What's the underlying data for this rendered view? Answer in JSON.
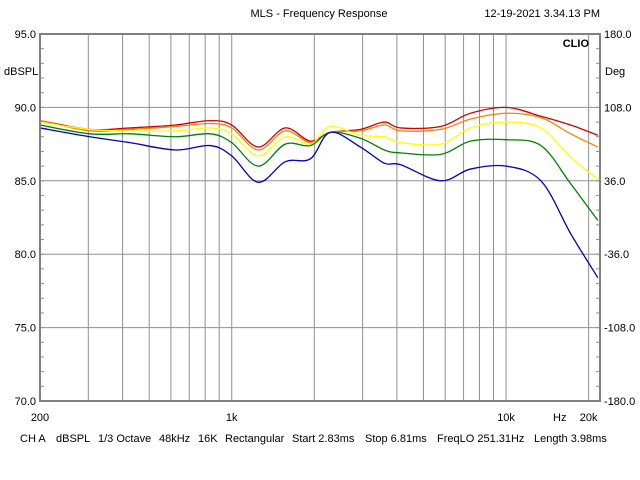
{
  "chart_data": {
    "type": "line",
    "title": "MLS - Frequency Response",
    "timestamp": "12-19-2021 3.34.13 PM",
    "brand": "CLIO",
    "ylabel": "dBSPL",
    "y2label": "Deg",
    "xunit": "Hz",
    "xscale": "log",
    "xlim": [
      200,
      22000
    ],
    "ylim": [
      70,
      95
    ],
    "y2lim": [
      -180,
      180
    ],
    "grid": true,
    "yticks": [
      {
        "value": 95,
        "label": "95.0"
      },
      {
        "value": 90,
        "label": "90.0"
      },
      {
        "value": 85,
        "label": "85.0"
      },
      {
        "value": 80,
        "label": "80.0"
      },
      {
        "value": 75,
        "label": "75.0"
      },
      {
        "value": 70,
        "label": "70.0"
      }
    ],
    "y2ticks": [
      "180.0",
      "108.0",
      "36.0",
      "-36.0",
      "-108.0",
      "-180.0"
    ],
    "xticks": [
      {
        "value": 200,
        "label": "200"
      },
      {
        "value": 1000,
        "label": "1k"
      },
      {
        "value": 10000,
        "label": "10k"
      },
      {
        "value": 20000,
        "label": "20k"
      }
    ],
    "xgrid": [
      300,
      400,
      500,
      600,
      700,
      800,
      900,
      1000,
      2000,
      3000,
      4000,
      5000,
      6000,
      7000,
      8000,
      9000,
      10000,
      20000
    ],
    "x": [
      200,
      304,
      426,
      622,
      834,
      1000,
      1249,
      1567,
      1934,
      2286,
      2944,
      3600,
      4120,
      5770,
      7413,
      10000,
      13400,
      17200,
      21600
    ],
    "series": [
      {
        "name": "red",
        "color": "#d00000",
        "values": [
          89.1,
          88.5,
          88.6,
          88.8,
          89.1,
          88.8,
          87.3,
          88.6,
          87.7,
          88.3,
          88.5,
          89.0,
          88.6,
          88.7,
          89.6,
          90.0,
          89.4,
          88.8,
          88.1
        ]
      },
      {
        "name": "orange",
        "color": "#ff8000",
        "values": [
          89.1,
          88.4,
          88.5,
          88.7,
          88.9,
          88.6,
          87.1,
          88.4,
          87.6,
          88.3,
          88.4,
          88.8,
          88.4,
          88.5,
          89.2,
          89.6,
          89.3,
          88.2,
          87.3
        ]
      },
      {
        "name": "yellow",
        "color": "#ffff00",
        "values": [
          89.0,
          88.5,
          88.4,
          88.4,
          88.6,
          88.2,
          86.7,
          88.0,
          87.5,
          88.7,
          88.1,
          88.0,
          87.6,
          87.5,
          88.6,
          89.0,
          88.6,
          86.6,
          85.1
        ]
      },
      {
        "name": "green",
        "color": "#008000",
        "values": [
          88.8,
          88.2,
          88.2,
          88.0,
          88.2,
          87.6,
          86.0,
          87.5,
          87.4,
          88.3,
          87.9,
          87.1,
          86.9,
          86.8,
          87.7,
          87.8,
          87.4,
          84.8,
          82.3
        ]
      },
      {
        "name": "blue",
        "color": "#0000c0",
        "values": [
          88.6,
          88.0,
          87.6,
          87.1,
          87.4,
          86.7,
          84.9,
          86.3,
          86.5,
          88.3,
          87.3,
          86.2,
          86.1,
          85.0,
          85.8,
          86.0,
          85.0,
          81.4,
          78.4
        ]
      }
    ]
  },
  "footer": {
    "channel": "CH A",
    "unit": "dBSPL",
    "smoothing": "1/3 Octave",
    "rate": "48kHz",
    "size": "16K",
    "window": "Rectangular",
    "start": "Start 2.83ms",
    "stop": "Stop 6.81ms",
    "freqlo": "FreqLO 251.31Hz",
    "length": "Length 3.98ms"
  }
}
